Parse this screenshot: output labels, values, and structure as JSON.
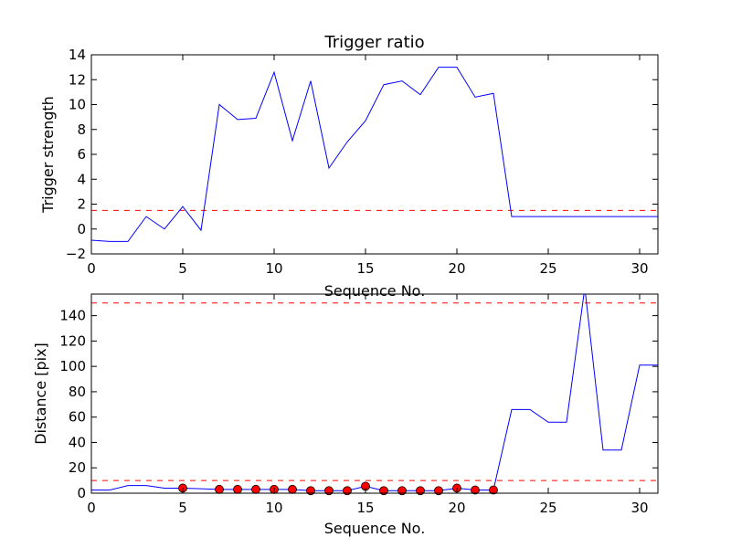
{
  "colors": {
    "line": "#0000ff",
    "threshold": "#ff0000",
    "marker_fill": "#ff0000",
    "marker_edge": "#000000"
  },
  "chart_data": [
    {
      "type": "line",
      "title": "Trigger ratio",
      "xlabel": "Sequence No.",
      "ylabel": "Trigger strength",
      "xlim": [
        0,
        31
      ],
      "ylim": [
        -2,
        14
      ],
      "xticks": [
        0,
        5,
        10,
        15,
        20,
        25,
        30
      ],
      "yticks": [
        -2,
        0,
        2,
        4,
        6,
        8,
        10,
        12,
        14
      ],
      "grid": false,
      "series": [
        {
          "x": [
            0,
            1,
            2,
            3,
            4,
            5,
            6,
            7,
            8,
            9,
            10,
            11,
            12,
            13,
            14,
            15,
            16,
            17,
            18,
            19,
            20,
            21,
            22,
            23,
            24,
            25,
            26,
            27,
            28,
            29,
            30,
            31
          ],
          "values": [
            -0.9,
            -1.0,
            -1.0,
            1.0,
            0.0,
            1.8,
            -0.1,
            10.0,
            8.8,
            8.9,
            12.6,
            7.1,
            11.9,
            4.9,
            7.0,
            8.7,
            11.6,
            11.9,
            10.8,
            13.0,
            13.0,
            10.6,
            10.9,
            1.0,
            1.0,
            1.0,
            1.0,
            1.0,
            1.0,
            1.0,
            1.0,
            1.0
          ]
        }
      ],
      "threshold_lines": [
        1.5
      ]
    },
    {
      "type": "line",
      "title": "",
      "xlabel": "Sequence No.",
      "ylabel": "Distance [pix]",
      "xlim": [
        0,
        31
      ],
      "ylim": [
        0,
        157
      ],
      "xticks": [
        0,
        5,
        10,
        15,
        20,
        25,
        30
      ],
      "yticks": [
        0,
        20,
        40,
        60,
        80,
        100,
        120,
        140
      ],
      "grid": false,
      "series": [
        {
          "x": [
            0,
            1,
            2,
            3,
            4,
            5,
            6,
            7,
            8,
            9,
            10,
            11,
            12,
            13,
            14,
            15,
            16,
            17,
            18,
            19,
            20,
            21,
            22,
            23,
            24,
            25,
            26,
            27,
            28,
            29,
            30,
            31
          ],
          "values": [
            2.5,
            2.5,
            6,
            6,
            4,
            4,
            3.5,
            3,
            3,
            3,
            3,
            3,
            2,
            2,
            2,
            5.5,
            2,
            2,
            2,
            2,
            4,
            2.5,
            2.5,
            66,
            66,
            56,
            56,
            162,
            34,
            34,
            101,
            101
          ]
        }
      ],
      "markers": {
        "x": [
          5,
          7,
          8,
          9,
          10,
          11,
          12,
          13,
          14,
          15,
          16,
          17,
          18,
          19,
          20,
          21,
          22
        ],
        "values": [
          4,
          3,
          3,
          3,
          3,
          3,
          2,
          2,
          2,
          5.5,
          2,
          2,
          2,
          2,
          4,
          2.5,
          2.5
        ]
      },
      "threshold_lines": [
        10,
        150
      ]
    }
  ]
}
